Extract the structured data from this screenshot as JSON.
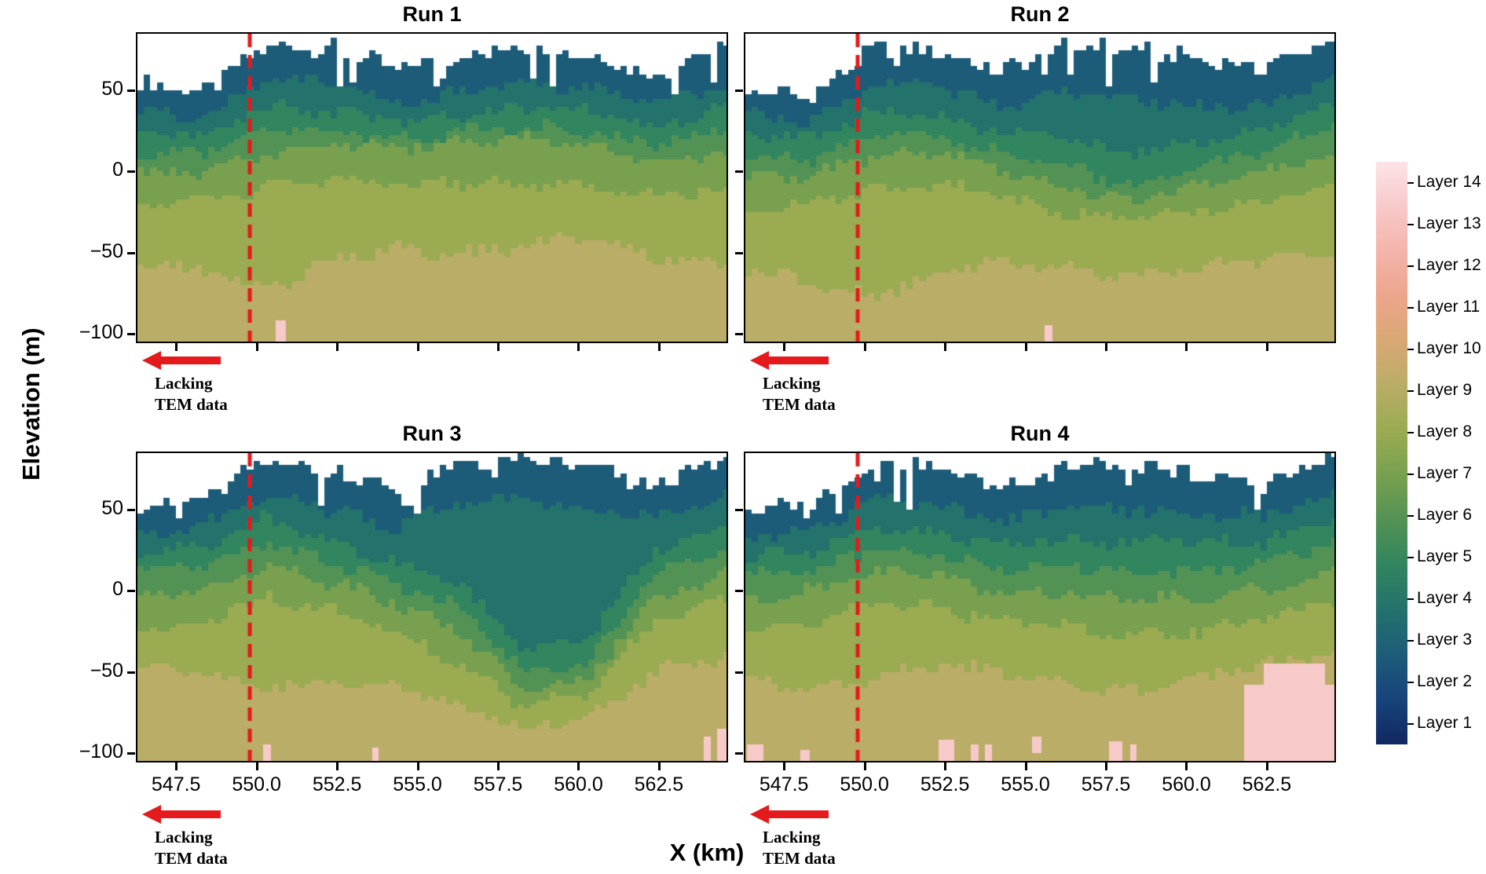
{
  "chart_data": {
    "type": "heatmap",
    "title": "",
    "xlabel": "X (km)",
    "ylabel": "Elevation (m)",
    "x_range": [
      546.3,
      564.6
    ],
    "y_range": [
      -105,
      85
    ],
    "x_ticks": {
      "values": [
        547.5,
        550.0,
        552.5,
        555.0,
        557.5,
        560.0,
        562.5
      ],
      "labels": [
        "547.5",
        "550.0",
        "552.5",
        "555.0",
        "557.5",
        "560.0",
        "562.5"
      ]
    },
    "y_ticks": {
      "values": [
        50,
        0,
        -50,
        -100
      ],
      "labels": [
        "50",
        "0",
        "−50",
        "−100"
      ]
    },
    "dashed_line_x": 549.8,
    "dashed_line_color": "#e41a1c",
    "control_x": [
      546.3,
      548.3,
      550.3,
      552.3,
      554.3,
      556.3,
      558.3,
      560.3,
      562.3,
      564.6
    ],
    "band_layers": [
      3,
      4,
      5,
      6,
      7,
      8,
      9
    ],
    "layer_colors": {
      "1": "#112861",
      "2": "#17437b",
      "3": "#1d5c79",
      "4": "#23726c",
      "5": "#31855f",
      "6": "#539255",
      "7": "#78a04f",
      "8": "#9aab51",
      "9": "#b9ad67",
      "10": "#d8a873",
      "11": "#eca58c",
      "12": "#f4b4ab",
      "13": "#f8c9c9",
      "14": "#fce4e8"
    },
    "legend_labels": [
      "Layer 14",
      "Layer 13",
      "Layer 12",
      "Layer 11",
      "Layer 10",
      "Layer 9",
      "Layer 8",
      "Layer 7",
      "Layer 6",
      "Layer 5",
      "Layer 4",
      "Layer 3",
      "Layer 2",
      "Layer 1"
    ],
    "annotation": {
      "line1": "Lacking",
      "line2": "TEM data",
      "arrow_color": "#e41a1c"
    },
    "panels": [
      {
        "title": "Run 1",
        "topo": [
          55,
          48,
          78,
          76,
          64,
          70,
          78,
          72,
          60,
          80
        ],
        "bottoms": [
          [
            38,
            32,
            58,
            55,
            44,
            48,
            55,
            52,
            42,
            55
          ],
          [
            26,
            22,
            40,
            38,
            30,
            34,
            40,
            38,
            28,
            40
          ],
          [
            12,
            10,
            26,
            26,
            20,
            24,
            28,
            26,
            16,
            26
          ],
          [
            -2,
            0,
            10,
            18,
            14,
            18,
            20,
            16,
            6,
            12
          ],
          [
            -22,
            -18,
            -10,
            -5,
            -8,
            -6,
            -8,
            -10,
            -14,
            -12
          ],
          [
            -55,
            -62,
            -72,
            -55,
            -48,
            -52,
            -45,
            -42,
            -52,
            -58
          ]
        ],
        "patches": [
          {
            "x": 550.6,
            "w": 0.3,
            "top": -92,
            "bottom": -105,
            "layer": 13
          }
        ]
      },
      {
        "title": "Run 2",
        "topo": [
          50,
          46,
          76,
          74,
          62,
          78,
          76,
          70,
          64,
          82
        ],
        "bottoms": [
          [
            36,
            30,
            56,
            52,
            40,
            50,
            45,
            40,
            40,
            58
          ],
          [
            24,
            20,
            38,
            34,
            24,
            20,
            12,
            18,
            26,
            42
          ],
          [
            10,
            8,
            24,
            22,
            12,
            2,
            -8,
            2,
            12,
            28
          ],
          [
            -4,
            -2,
            10,
            12,
            2,
            -10,
            -18,
            -10,
            -2,
            10
          ],
          [
            -22,
            -20,
            -12,
            -8,
            -15,
            -25,
            -30,
            -25,
            -18,
            -8
          ],
          [
            -60,
            -68,
            -78,
            -62,
            -55,
            -60,
            -65,
            -60,
            -55,
            -50
          ]
        ],
        "patches": [
          {
            "x": 555.6,
            "w": 0.25,
            "top": -95,
            "bottom": -105,
            "layer": 13
          }
        ]
      },
      {
        "title": "Run 3",
        "topo": [
          52,
          55,
          80,
          76,
          62,
          78,
          80,
          76,
          66,
          80
        ],
        "bottoms": [
          [
            36,
            40,
            60,
            50,
            40,
            55,
            58,
            50,
            45,
            58
          ],
          [
            24,
            28,
            45,
            30,
            18,
            5,
            -35,
            -30,
            25,
            40
          ],
          [
            12,
            15,
            30,
            18,
            5,
            -10,
            -50,
            -45,
            10,
            25
          ],
          [
            -5,
            2,
            15,
            5,
            -8,
            -25,
            -60,
            -55,
            -5,
            10
          ],
          [
            -25,
            -18,
            -5,
            -12,
            -25,
            -45,
            -70,
            -65,
            -20,
            -5
          ],
          [
            -48,
            -50,
            -60,
            -55,
            -60,
            -70,
            -85,
            -80,
            -50,
            -40
          ]
        ],
        "patches": [
          {
            "x": 550.2,
            "w": 0.25,
            "top": -95,
            "bottom": -105,
            "layer": 13
          },
          {
            "x": 553.6,
            "w": 0.2,
            "top": -97,
            "bottom": -105,
            "layer": 13
          },
          {
            "x": 563.9,
            "w": 0.2,
            "top": -90,
            "bottom": -105,
            "layer": 13
          },
          {
            "x": 564.3,
            "w": 0.3,
            "top": -85,
            "bottom": -105,
            "layer": 13
          }
        ]
      },
      {
        "title": "Run 4",
        "topo": [
          50,
          52,
          80,
          76,
          64,
          78,
          76,
          72,
          66,
          82
        ],
        "bottoms": [
          [
            34,
            36,
            58,
            52,
            42,
            52,
            50,
            48,
            46,
            60
          ],
          [
            22,
            24,
            40,
            36,
            28,
            32,
            30,
            30,
            30,
            45
          ],
          [
            10,
            12,
            26,
            22,
            14,
            15,
            12,
            12,
            15,
            30
          ],
          [
            -5,
            0,
            12,
            10,
            0,
            -2,
            -5,
            -5,
            0,
            12
          ],
          [
            -25,
            -20,
            -8,
            -10,
            -18,
            -22,
            -28,
            -25,
            -18,
            -5
          ],
          [
            -55,
            -60,
            -55,
            -45,
            -50,
            -58,
            -62,
            -55,
            -45,
            -40
          ]
        ],
        "patches": [
          {
            "x": 561.8,
            "w": 2.8,
            "top": -58,
            "bottom": -105,
            "layer": 13
          },
          {
            "x": 562.4,
            "w": 1.9,
            "top": -45,
            "bottom": -58,
            "layer": 13
          },
          {
            "x": 546.35,
            "w": 0.5,
            "top": -95,
            "bottom": -105,
            "layer": 13
          },
          {
            "x": 548.0,
            "w": 0.3,
            "top": -98,
            "bottom": -105,
            "layer": 13
          },
          {
            "x": 552.3,
            "w": 0.5,
            "top": -92,
            "bottom": -105,
            "layer": 13
          },
          {
            "x": 553.3,
            "w": 0.25,
            "top": -95,
            "bottom": -105,
            "layer": 13
          },
          {
            "x": 553.75,
            "w": 0.2,
            "top": -95,
            "bottom": -105,
            "layer": 13
          },
          {
            "x": 555.2,
            "w": 0.3,
            "top": -90,
            "bottom": -100,
            "layer": 13
          },
          {
            "x": 557.6,
            "w": 0.4,
            "top": -93,
            "bottom": -105,
            "layer": 13
          },
          {
            "x": 558.25,
            "w": 0.2,
            "top": -95,
            "bottom": -105,
            "layer": 13
          }
        ]
      }
    ]
  }
}
